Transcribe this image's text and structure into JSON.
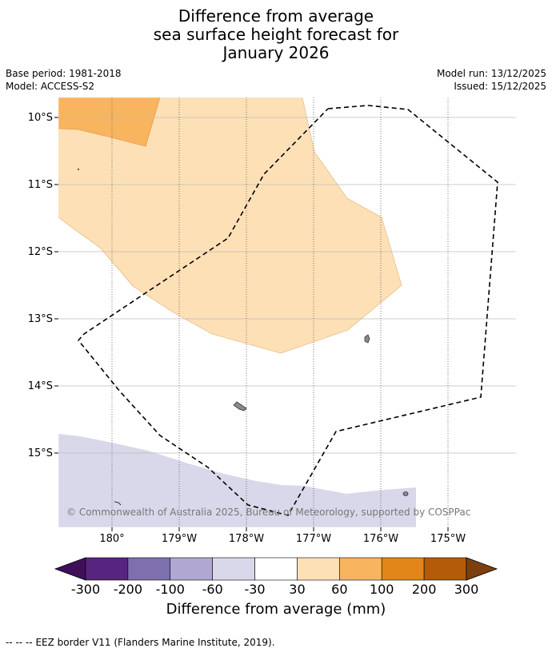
{
  "title": {
    "line1": "Difference from average",
    "line2": "sea surface height forecast for",
    "line3": "January 2026"
  },
  "meta": {
    "base_period": "Base period: 1981-2018",
    "model": "Model: ACCESS-S2",
    "model_run": "Model run: 13/12/2025",
    "issued": "Issued: 15/12/2025"
  },
  "map": {
    "lat_labels": [
      "10°S",
      "11°S",
      "12°S",
      "13°S",
      "14°S",
      "15°S"
    ],
    "lon_labels": [
      "180°",
      "179°W",
      "178°W",
      "177°W",
      "176°W",
      "175°W"
    ],
    "copyright": "© Commonwealth of Australia 2025, Bureau of Meteorology, supported by COSPPac"
  },
  "colorbar": {
    "title": "Difference from average (mm)",
    "ticks": [
      "-300",
      "-200",
      "-100",
      "-60",
      "-30",
      "30",
      "60",
      "100",
      "200",
      "300"
    ],
    "colors": [
      "#3f0f5c",
      "#57247f",
      "#7e6fae",
      "#b0a8d2",
      "#d8d8ea",
      "#ffffff",
      "#fde0b6",
      "#f9b45f",
      "#e2861a",
      "#b35b08",
      "#7c3f0f"
    ]
  },
  "footer": {
    "legend_symbol": "-- -- --",
    "legend_text": "EEZ border V11 (Flanders Marine Institute, 2019)."
  }
}
